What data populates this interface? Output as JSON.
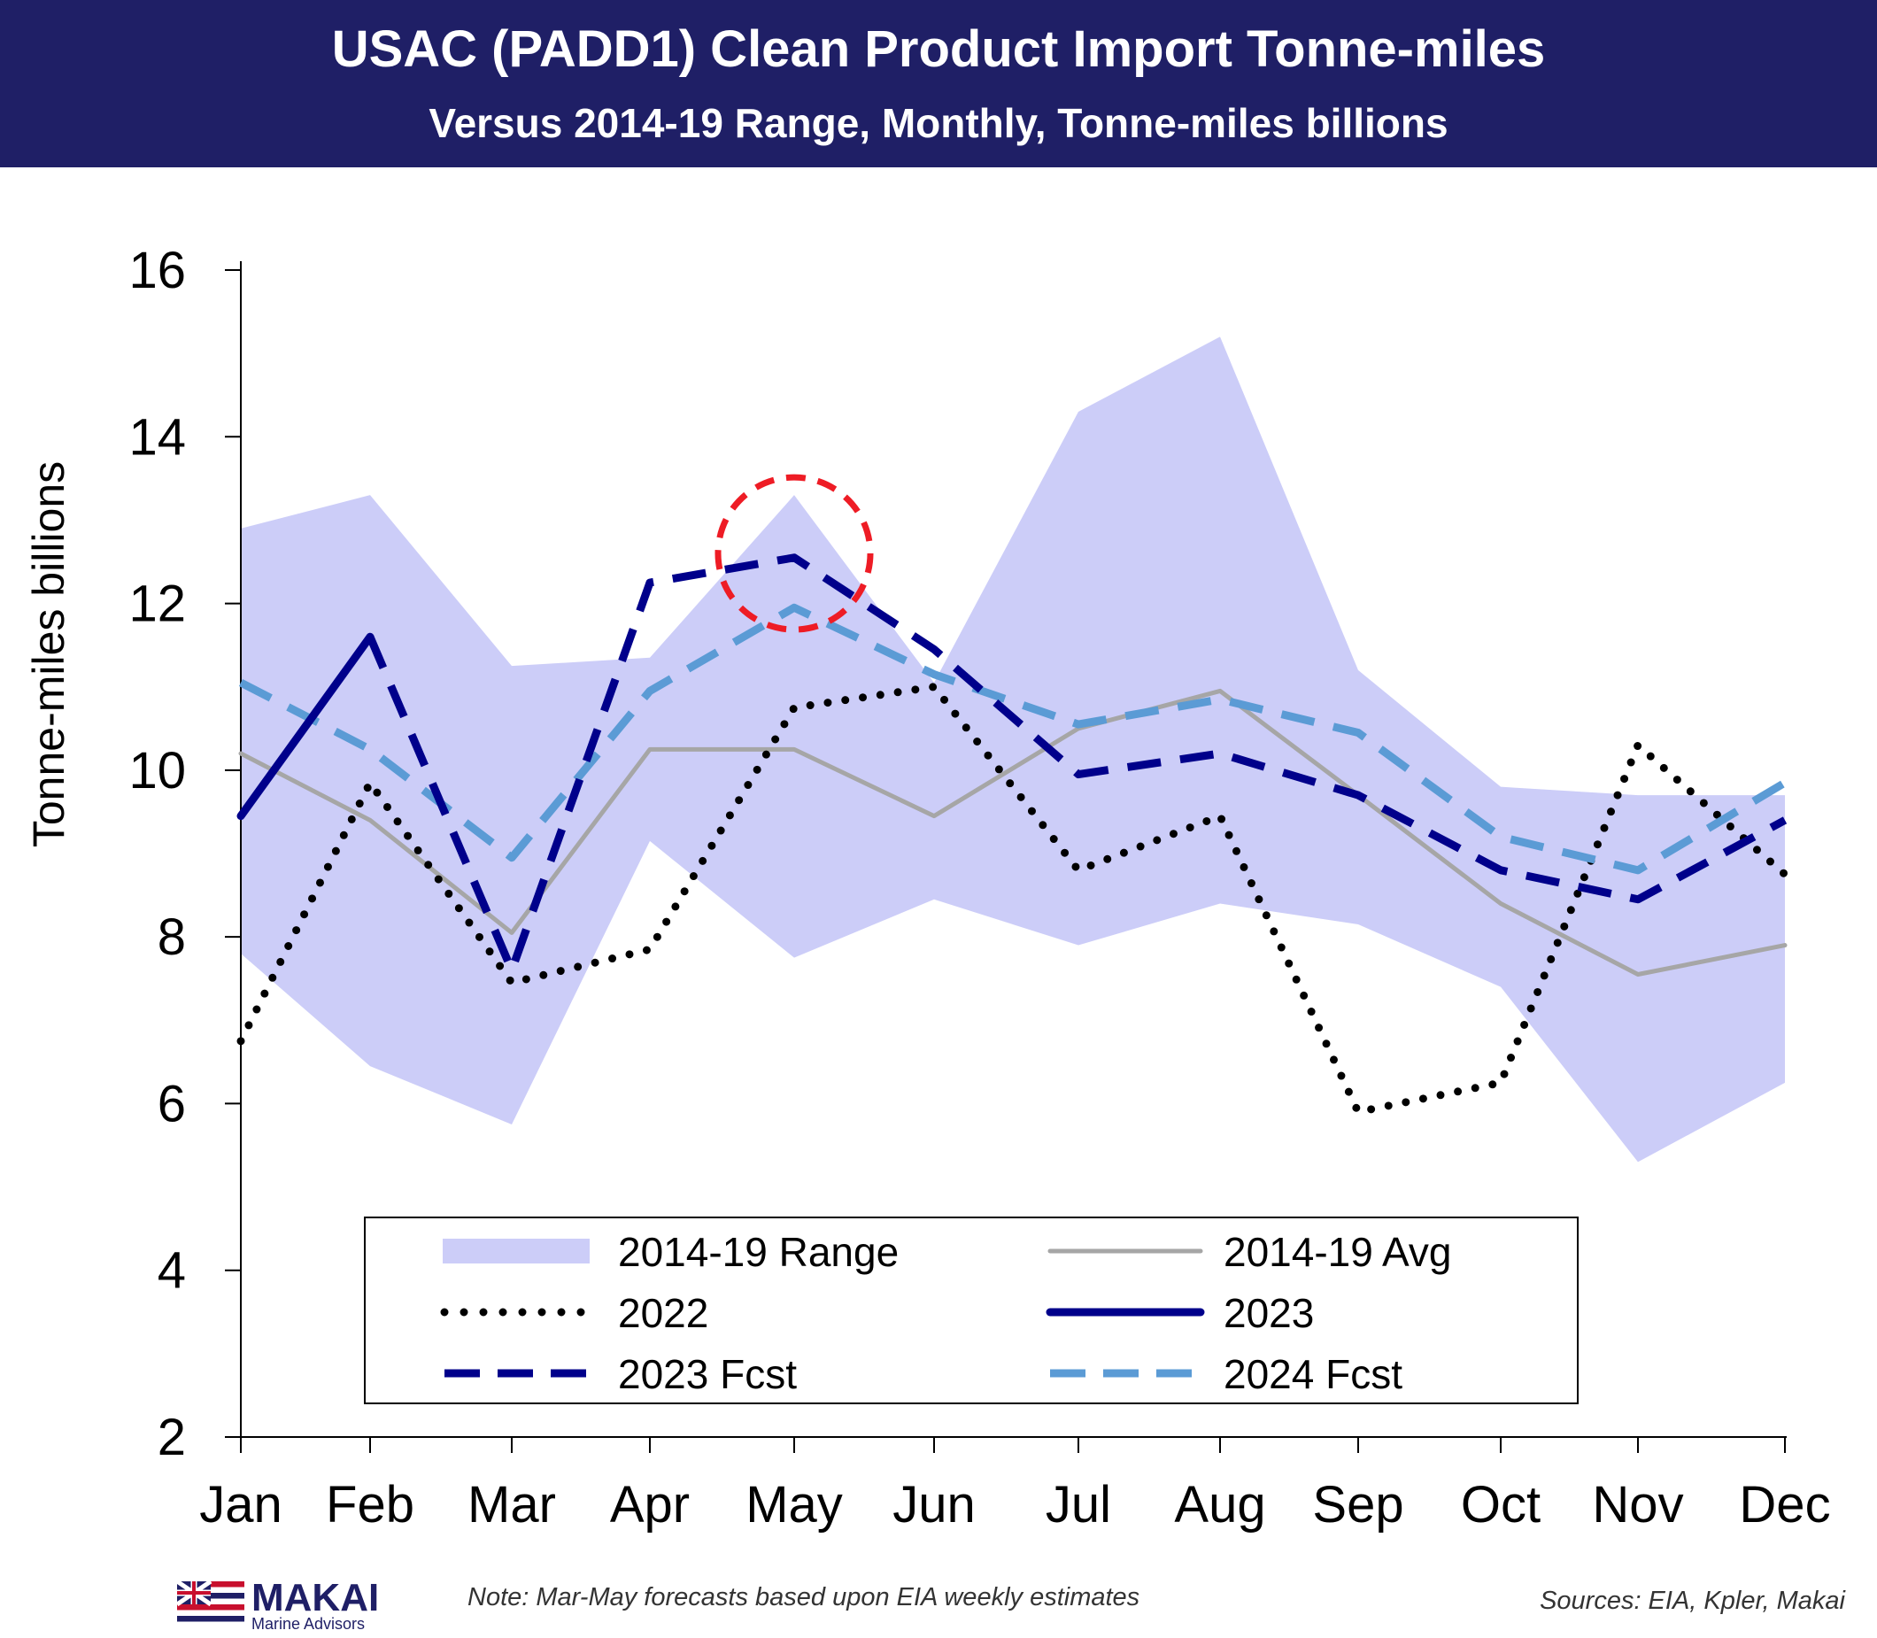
{
  "header": {
    "title": "USAC (PADD1) Clean Product Import Tonne-miles",
    "subtitle": "Versus 2014-19 Range, Monthly, Tonne-miles billions"
  },
  "chart_data": {
    "type": "line",
    "ylabel": "Tonne-miles billions",
    "ylim": [
      2,
      16
    ],
    "yticks": [
      "2",
      "4",
      "6",
      "8",
      "10",
      "12",
      "14",
      "16"
    ],
    "categories": [
      "Jan",
      "Feb",
      "Mar",
      "Apr",
      "May",
      "Jun",
      "Jul",
      "Aug",
      "Sep",
      "Oct",
      "Nov",
      "Dec"
    ],
    "grid": false,
    "legend_position": "bottom-center",
    "range": {
      "name": "2014-19 Range",
      "color": "#cccdf8",
      "upper": [
        12.9,
        13.3,
        11.25,
        11.35,
        13.3,
        11.05,
        14.3,
        15.2,
        11.2,
        9.8,
        9.7,
        9.7
      ],
      "lower": [
        7.8,
        6.45,
        5.75,
        9.15,
        7.75,
        8.45,
        7.9,
        8.4,
        8.15,
        7.4,
        5.3,
        6.25
      ]
    },
    "series": [
      {
        "name": "2014-19 Avg",
        "color": "#a6a6a6",
        "dash": "solid",
        "values": [
          10.2,
          9.4,
          8.05,
          10.25,
          10.25,
          9.45,
          10.5,
          10.95,
          9.7,
          8.4,
          7.55,
          7.9
        ]
      },
      {
        "name": "2022",
        "color": "#000000",
        "dash": "dotted",
        "values": [
          6.75,
          9.85,
          7.45,
          7.85,
          10.75,
          11.0,
          8.8,
          9.45,
          5.9,
          6.25,
          10.3,
          8.75
        ]
      },
      {
        "name": "2023",
        "color": "#00008b",
        "dash": "solid",
        "values": [
          9.45,
          11.6,
          null,
          null,
          null,
          null,
          null,
          null,
          null,
          null,
          null,
          null
        ]
      },
      {
        "name": "2023 Fcst",
        "color": "#00008b",
        "dash": "dashed",
        "values": [
          null,
          11.6,
          7.6,
          12.25,
          12.55,
          11.45,
          9.95,
          10.2,
          9.7,
          8.8,
          8.45,
          9.4
        ]
      },
      {
        "name": "2024 Fcst",
        "color": "#5b9bd5",
        "dash": "dashed",
        "values": [
          11.05,
          10.25,
          8.95,
          10.95,
          11.95,
          11.15,
          10.55,
          10.85,
          10.45,
          9.2,
          8.8,
          9.85
        ]
      }
    ],
    "annotation": {
      "type": "dashed-circle",
      "color": "#ee1c25",
      "month": "May",
      "y": 12.6
    }
  },
  "footer": {
    "note": "Note: Mar-May forecasts based upon EIA weekly estimates",
    "sources": "Sources: EIA, Kpler, Makai",
    "logo_name": "MAKAI",
    "logo_sub": "Marine Advisors"
  }
}
